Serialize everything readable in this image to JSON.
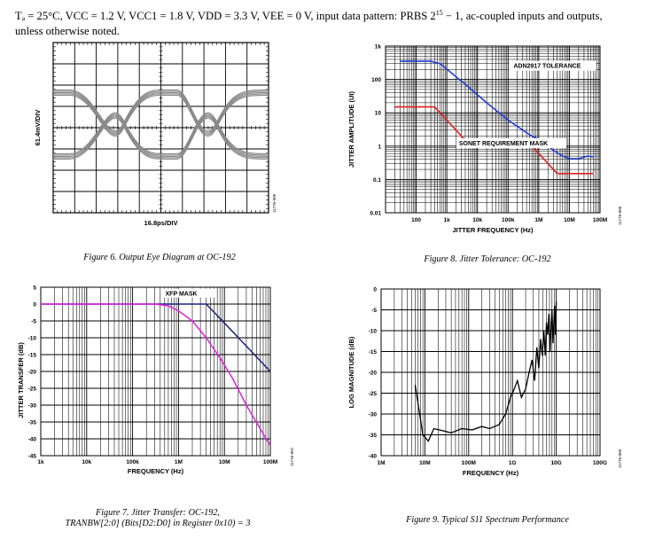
{
  "header": {
    "conditions": "TA = 25°C, VCC = 1.2 V, VCC1 = 1.8 V, VDD = 3.3 V, VEE = 0 V, input data pattern: PRBS 2^15 − 1, ac-coupled inputs and outputs, unless otherwise noted.",
    "line1": "Tₐ = 25°C, VCC = 1.2 V, VCC1 = 1.8 V, VDD = 3.3 V, VEE = 0 V, input data pattern: PRBS 2",
    "superscript": "15",
    "line1_end": " − 1, ac-coupled inputs and outputs,",
    "line2": "unless otherwise noted."
  },
  "chart_data": [
    {
      "id": "fig6",
      "type": "eye-diagram",
      "caption": "Figure 6. Output Eye Diagram at OC-192",
      "xlabel": "16.8ps/DIV",
      "ylabel": "61.4mV/DIV",
      "tag": "11776-006",
      "grid": true,
      "divisions": {
        "x": 10,
        "y": 8
      }
    },
    {
      "id": "fig8",
      "type": "line",
      "caption": "Figure 8. Jitter Tolerance: OC-192",
      "xlabel": "JITTER FREQUENCY (Hz)",
      "ylabel": "JITTER AMPLITUDE (UI)",
      "tag": "11776-008",
      "xscale": "log",
      "yscale": "log",
      "xlim": [
        10,
        100000000
      ],
      "ylim": [
        0.01,
        1000
      ],
      "xticks": [
        "100",
        "1k",
        "10k",
        "100k",
        "1M",
        "10M",
        "100M"
      ],
      "yticks": [
        "0.01",
        "0.1",
        "1",
        "10",
        "100",
        "1k"
      ],
      "grid": true,
      "series": [
        {
          "name": "ADN2917 TOLERANCE",
          "color": "#1f3fd6",
          "x": [
            30,
            300,
            600,
            1500,
            5000,
            20000,
            100000,
            500000,
            1500000,
            3000000,
            6000000,
            10000000,
            20000000,
            40000000,
            60000000
          ],
          "y": [
            350,
            350,
            300,
            150,
            60,
            20,
            6,
            2.2,
            1.3,
            0.75,
            0.5,
            0.42,
            0.42,
            0.5,
            0.47
          ]
        },
        {
          "name": "SONET REQUIREMENT MASK",
          "color": "#e02020",
          "x": [
            20,
            400,
            4000,
            40000,
            400000,
            4000000,
            60000000
          ],
          "y": [
            15,
            15,
            1.5,
            1.5,
            1.5,
            0.15,
            0.15
          ]
        }
      ]
    },
    {
      "id": "fig7",
      "type": "line",
      "caption_line1": "Figure 7. Jitter Transfer: OC-192,",
      "caption_line2": "TRANBW[2:0] (Bits[D2:D0] in Register 0x10) = 3",
      "xlabel": "FREQUENCY (Hz)",
      "ylabel": "JITTER TRANSFER (dB)",
      "tag": "11776-007",
      "xscale": "log",
      "xlim": [
        1000,
        100000000
      ],
      "ylim": [
        -45,
        5
      ],
      "xticks": [
        "1k",
        "10k",
        "100k",
        "1M",
        "10M",
        "100M"
      ],
      "yticks": [
        "5",
        "0",
        "-5",
        "-10",
        "-15",
        "-20",
        "-25",
        "-30",
        "-35",
        "-40",
        "-45"
      ],
      "grid": true,
      "series": [
        {
          "name": "XFP MASK",
          "color": "#1a237e",
          "x": [
            1000,
            3000000,
            4000000,
            10000000,
            100000000
          ],
          "y": [
            0,
            0,
            0,
            -5.6,
            -20
          ]
        },
        {
          "name": "",
          "color": "#e020e0",
          "x": [
            1000,
            300000,
            600000,
            1000000,
            2000000,
            4000000,
            8000000,
            15000000,
            30000000,
            60000000,
            100000000
          ],
          "y": [
            0,
            0,
            -0.5,
            -2,
            -5,
            -10,
            -16,
            -22,
            -30,
            -37,
            -42
          ]
        }
      ]
    },
    {
      "id": "fig9",
      "type": "line",
      "caption": "Figure 9. Typical S11 Spectrum Performance",
      "xlabel": "FREQUENCY (Hz)",
      "ylabel": "LOG MAGNITUDE (dB)",
      "tag": "11776-009",
      "xscale": "log",
      "xlim": [
        1000000,
        100000000000
      ],
      "ylim": [
        -40,
        0
      ],
      "xticks": [
        "1M",
        "10M",
        "100M",
        "1G",
        "10G",
        "100G"
      ],
      "yticks": [
        "0",
        "-5",
        "-10",
        "-15",
        "-20",
        "-25",
        "-30",
        "-35",
        "-40"
      ],
      "grid": true,
      "series": [
        {
          "name": "",
          "color": "#000000",
          "x": [
            6000000,
            9000000,
            12000000,
            16000000,
            25000000,
            40000000,
            70000000,
            120000000,
            200000000,
            300000000,
            500000000,
            700000000,
            900000000,
            1100000000,
            1300000000,
            1600000000,
            2000000000,
            2400000000,
            2800000000,
            3200000000,
            3600000000,
            4000000000,
            4400000000,
            4800000000,
            5200000000,
            5600000000,
            6000000000,
            6400000000,
            6800000000,
            7200000000,
            7600000000,
            8000000000,
            8400000000,
            8800000000,
            9200000000,
            9600000000,
            10000000000
          ],
          "y": [
            -23,
            -35,
            -36.5,
            -33.5,
            -34,
            -34.5,
            -33.5,
            -33.8,
            -33,
            -33.5,
            -32.5,
            -30,
            -26,
            -24,
            -22,
            -26,
            -24,
            -20,
            -17,
            -22,
            -14,
            -19,
            -12,
            -16,
            -10,
            -16,
            -8,
            -11,
            -6,
            -15,
            -9,
            -5,
            -13,
            -8,
            -4,
            -11,
            -3
          ]
        }
      ]
    }
  ]
}
